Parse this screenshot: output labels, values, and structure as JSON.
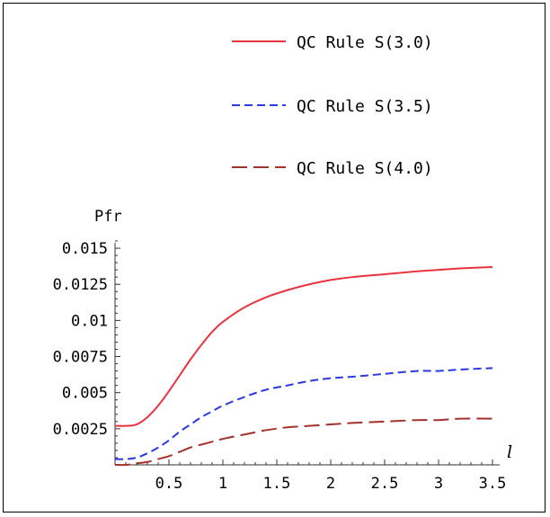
{
  "chart_data": {
    "type": "line",
    "title": "",
    "xlabel": "l",
    "ylabel": "Pfr",
    "xlim": [
      0,
      3.5
    ],
    "ylim": [
      0,
      0.016
    ],
    "grid": false,
    "legend_position": "top-right",
    "x_ticks": [
      "0.5",
      "1",
      "1.5",
      "2",
      "2.5",
      "3",
      "3.5"
    ],
    "y_ticks": [
      "0.0025",
      "0.005",
      "0.0075",
      "0.01",
      "0.0125",
      "0.015"
    ],
    "x": [
      0,
      0.1,
      0.2,
      0.3,
      0.4,
      0.5,
      0.6,
      0.7,
      0.8,
      0.9,
      1.0,
      1.2,
      1.4,
      1.6,
      1.8,
      2.0,
      2.2,
      2.5,
      2.8,
      3.0,
      3.2,
      3.5
    ],
    "series": [
      {
        "name": "QC Rule S(3.0)",
        "color": "#e8343f",
        "dash": "solid",
        "values": [
          0.0027,
          0.0027,
          0.0028,
          0.0033,
          0.0041,
          0.0051,
          0.0062,
          0.0073,
          0.0083,
          0.0092,
          0.0099,
          0.0109,
          0.0116,
          0.0121,
          0.0125,
          0.0128,
          0.013,
          0.0132,
          0.0134,
          0.0135,
          0.0136,
          0.0137
        ]
      },
      {
        "name": "QC Rule S(3.5)",
        "color": "#2b3ae0",
        "dash": "short",
        "values": [
          0.0004,
          0.0004,
          0.0005,
          0.0008,
          0.0012,
          0.0017,
          0.0023,
          0.0028,
          0.0033,
          0.0037,
          0.0041,
          0.0047,
          0.0052,
          0.0055,
          0.0058,
          0.006,
          0.0061,
          0.0063,
          0.0065,
          0.0065,
          0.0066,
          0.0067
        ]
      },
      {
        "name": "QC Rule S(4.0)",
        "color": "#a3322c",
        "dash": "long",
        "values": [
          0.0,
          0.0,
          0.0001,
          0.0002,
          0.0004,
          0.0006,
          0.0009,
          0.0012,
          0.0014,
          0.0016,
          0.0018,
          0.0021,
          0.0024,
          0.0026,
          0.0027,
          0.0028,
          0.0029,
          0.003,
          0.0031,
          0.0031,
          0.0032,
          0.0032
        ]
      }
    ]
  }
}
